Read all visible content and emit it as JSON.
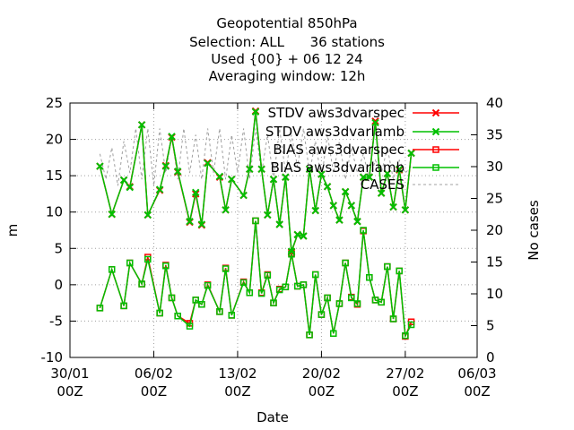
{
  "chart_data": {
    "type": "line",
    "title_lines": [
      "Geopotential 850hPa",
      "Selection: ALL      36 stations",
      "Used {00} + 06 12 24",
      "Averaging window: 12h"
    ],
    "xlabel": "Date",
    "ylabel": "m",
    "y2label": "No cases",
    "ylim": [
      -10,
      25
    ],
    "y2lim": [
      0,
      40
    ],
    "xlim": [
      0,
      34
    ],
    "yticks": [
      -10,
      -5,
      0,
      5,
      10,
      15,
      20,
      25
    ],
    "y2ticks": [
      0,
      5,
      10,
      15,
      20,
      25,
      30,
      35,
      40
    ],
    "xticks": [
      {
        "x": 0,
        "line1": "30/01",
        "line2": "00Z"
      },
      {
        "x": 7,
        "line1": "06/02",
        "line2": "00Z"
      },
      {
        "x": 14,
        "line1": "13/02",
        "line2": "00Z"
      },
      {
        "x": 21,
        "line1": "20/02",
        "line2": "00Z"
      },
      {
        "x": 28,
        "line1": "27/02",
        "line2": "00Z"
      },
      {
        "x": 35,
        "line1": "06/03",
        "line2": "00Z"
      }
    ],
    "grid": true,
    "legend_position": "top-right",
    "series": [
      {
        "name": "STDV aws3dvarspec",
        "color": "#ff0000",
        "marker": "x",
        "x": [
          2.5,
          3.5,
          4.5,
          5.0,
          6.0,
          6.5,
          7.5,
          8.0,
          8.5,
          9.0,
          10.0,
          10.5,
          11.0,
          11.5,
          12.5,
          13.0,
          13.5,
          14.5,
          15.0,
          15.5,
          16.0,
          16.5,
          17.0,
          17.5,
          18.0,
          18.5,
          19.0,
          19.5,
          20.0,
          20.5,
          21.0,
          21.5,
          22.0,
          22.5,
          23.0,
          23.5,
          24.0,
          24.5,
          25.0,
          25.5,
          26.0,
          26.5,
          27.0,
          27.5,
          28.0,
          28.5
        ],
        "y": [
          16.3,
          9.7,
          14.4,
          13.5,
          22.0,
          9.6,
          13.0,
          16.4,
          20.3,
          15.5,
          8.6,
          12.5,
          8.2,
          16.8,
          14.8,
          10.3,
          14.5,
          12.3,
          15.9,
          23.9,
          15.9,
          9.6,
          14.5,
          8.3,
          14.8,
          4.5,
          6.9,
          6.7,
          15.9,
          10.2,
          15.2,
          13.5,
          10.9,
          8.9,
          12.8,
          10.9,
          8.7,
          14.8,
          14.8,
          22.5,
          12.6,
          15.3,
          10.7,
          15.8,
          10.3,
          18.1
        ]
      },
      {
        "name": "STDV aws3dvarlamb",
        "color": "#00c000",
        "marker": "x",
        "x": [
          2.5,
          3.5,
          4.5,
          5.0,
          6.0,
          6.5,
          7.5,
          8.0,
          8.5,
          9.0,
          10.0,
          10.5,
          11.0,
          11.5,
          12.5,
          13.0,
          13.5,
          14.5,
          15.0,
          15.5,
          16.0,
          16.5,
          17.0,
          17.5,
          18.0,
          18.5,
          19.0,
          19.5,
          20.0,
          20.5,
          21.0,
          21.5,
          22.0,
          22.5,
          23.0,
          23.5,
          24.0,
          24.5,
          25.0,
          25.5,
          26.0,
          26.5,
          27.0,
          27.5,
          28.0,
          28.5
        ],
        "y": [
          16.3,
          9.7,
          14.4,
          13.4,
          22.0,
          9.6,
          13.1,
          16.3,
          20.4,
          15.6,
          8.7,
          12.7,
          8.3,
          16.7,
          14.9,
          10.3,
          14.5,
          12.3,
          15.9,
          23.8,
          15.9,
          9.6,
          14.5,
          8.3,
          14.8,
          4.6,
          6.9,
          6.7,
          15.9,
          10.2,
          15.2,
          13.5,
          10.9,
          8.9,
          12.8,
          10.9,
          8.7,
          14.8,
          14.8,
          22.3,
          12.6,
          15.3,
          10.7,
          15.9,
          10.3,
          18.1
        ]
      },
      {
        "name": "BIAS aws3dvarspec",
        "color": "#ff0000",
        "marker": "square",
        "x": [
          2.5,
          3.5,
          4.5,
          5.0,
          6.0,
          6.5,
          7.5,
          8.0,
          8.5,
          9.0,
          10.0,
          10.5,
          11.0,
          11.5,
          12.5,
          13.0,
          13.5,
          14.5,
          15.0,
          15.5,
          16.0,
          16.5,
          17.0,
          17.5,
          18.0,
          18.5,
          19.0,
          19.5,
          20.0,
          20.5,
          21.0,
          21.5,
          22.0,
          22.5,
          23.0,
          23.5,
          24.0,
          24.5,
          25.0,
          25.5,
          26.0,
          26.5,
          27.0,
          27.5,
          28.0,
          28.5
        ],
        "y": [
          -3.2,
          2.1,
          -2.9,
          3.0,
          0.1,
          3.8,
          -3.9,
          2.7,
          -1.8,
          -4.3,
          -5.3,
          -2.1,
          -2.7,
          0.0,
          -3.7,
          2.3,
          -4.2,
          0.4,
          -1.1,
          8.8,
          -1.1,
          1.4,
          -2.5,
          -0.6,
          -0.3,
          4.3,
          -0.2,
          0.0,
          -6.9,
          1.4,
          -4.1,
          -1.8,
          -6.7,
          -2.6,
          3.0,
          -1.7,
          -2.7,
          7.4,
          1.0,
          -2.1,
          -2.4,
          2.5,
          -4.7,
          1.9,
          -7.1,
          -5.1
        ]
      },
      {
        "name": "BIAS aws3dvarlamb",
        "color": "#00c000",
        "marker": "square",
        "x": [
          2.5,
          3.5,
          4.5,
          5.0,
          6.0,
          6.5,
          7.5,
          8.0,
          8.5,
          9.0,
          10.0,
          10.5,
          11.0,
          11.5,
          12.5,
          13.0,
          13.5,
          14.5,
          15.0,
          15.5,
          16.0,
          16.5,
          17.0,
          17.5,
          18.0,
          18.5,
          19.0,
          19.5,
          20.0,
          20.5,
          21.0,
          21.5,
          22.0,
          22.5,
          23.0,
          23.5,
          24.0,
          24.5,
          25.0,
          25.5,
          26.0,
          26.5,
          27.0,
          27.5,
          28.0,
          28.5
        ],
        "y": [
          -3.2,
          2.1,
          -2.9,
          3.0,
          0.1,
          3.5,
          -3.9,
          2.6,
          -1.8,
          -4.3,
          -5.7,
          -2.1,
          -2.7,
          -0.1,
          -3.7,
          2.2,
          -4.2,
          0.3,
          -1.1,
          8.8,
          -1.2,
          1.3,
          -2.5,
          -0.7,
          -0.3,
          4.2,
          -0.2,
          0.0,
          -6.9,
          1.4,
          -4.1,
          -1.8,
          -6.7,
          -2.6,
          3.0,
          -1.8,
          -2.6,
          7.5,
          1.0,
          -2.1,
          -2.4,
          2.5,
          -4.7,
          1.9,
          -7.0,
          -5.5
        ]
      },
      {
        "name": "CASES",
        "color": "#a0a0a0",
        "marker": "none",
        "dashed": true,
        "axis": "y2",
        "x": [
          2.5,
          3.0,
          3.5,
          4.0,
          4.5,
          5.0,
          5.5,
          6.0,
          6.5,
          7.0,
          7.5,
          8.0,
          8.5,
          9.0,
          9.5,
          10.0,
          10.5,
          11.0,
          11.5,
          12.0,
          12.5,
          13.0,
          13.5,
          14.0,
          14.5,
          15.0,
          15.5,
          16.0,
          16.5,
          17.0,
          17.5,
          18.0,
          18.5,
          19.0,
          19.5,
          20.0,
          20.5,
          21.0,
          21.5,
          22.0,
          22.5,
          23.0,
          23.5,
          24.0,
          24.5,
          25.0,
          25.5,
          26.0,
          26.5,
          27.0,
          27.5,
          28.0,
          28.5
        ],
        "y": [
          32,
          28,
          33,
          27,
          34,
          29,
          36,
          28,
          36,
          27,
          36,
          29,
          35,
          28,
          36,
          29,
          35,
          28,
          36,
          29,
          36,
          28,
          35,
          29,
          36,
          28,
          36,
          29,
          35,
          28,
          36,
          29,
          35,
          30,
          36,
          29,
          34,
          28,
          35,
          29,
          34,
          28,
          33,
          29,
          32,
          28,
          31,
          29,
          33,
          28,
          31,
          29,
          30
        ]
      }
    ]
  }
}
